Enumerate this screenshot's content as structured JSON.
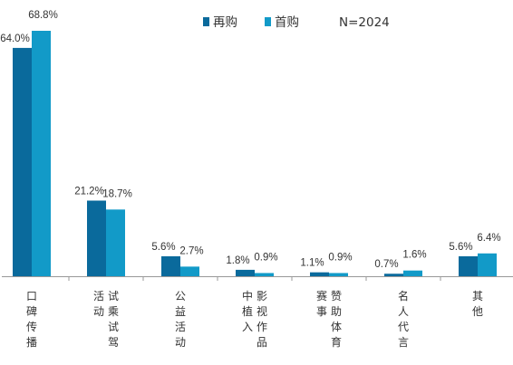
{
  "chart_data": {
    "type": "bar",
    "title": "",
    "xlabel": "",
    "ylabel": "",
    "ylim": [
      0,
      70
    ],
    "grid": false,
    "legend_position": "top",
    "annotation": "N=2024",
    "categories": [
      "口碑传播",
      "试乘试驾活动",
      "公益活动",
      "影视作品中植入",
      "赞助体育赛事",
      "名人代言",
      "其他"
    ],
    "category_columns": [
      [
        "口碑传播"
      ],
      [
        "试乘试驾",
        "活动"
      ],
      [
        "公益活动"
      ],
      [
        "影视作品",
        "中植入"
      ],
      [
        "赞助体育",
        "赛事"
      ],
      [
        "名人代言"
      ],
      [
        "其他"
      ]
    ],
    "series": [
      {
        "name": "再购",
        "color": "#0a6a9c",
        "values": [
          64.0,
          21.2,
          5.6,
          1.8,
          1.1,
          0.7,
          5.6
        ],
        "labels": [
          "64.0%",
          "21.2%",
          "5.6%",
          "1.8%",
          "1.1%",
          "0.7%",
          "5.6%"
        ]
      },
      {
        "name": "首购",
        "color": "#129ac8",
        "values": [
          68.8,
          18.7,
          2.7,
          0.9,
          0.9,
          1.6,
          6.4
        ],
        "labels": [
          "68.8%",
          "18.7%",
          "2.7%",
          "0.9%",
          "0.9%",
          "1.6%",
          "6.4%"
        ]
      }
    ]
  }
}
